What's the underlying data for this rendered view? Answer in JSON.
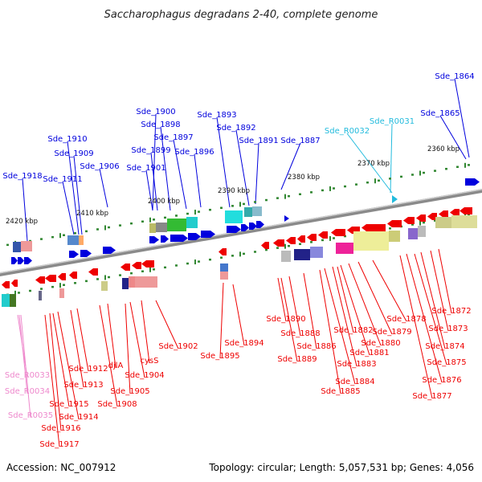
{
  "title": "Saccharophagus degradans 2-40, complete genome",
  "footer": {
    "accession": "Accession: NC_007912",
    "summary": "Topology: circular; Length: 5,057,531 bp; Genes: 4,056"
  },
  "colors": {
    "forward_gene": "#0000dd",
    "reverse_gene": "#ee0000",
    "rna_top": "#22bbdd",
    "rna_bottom": "#ee88cc",
    "backbone": "#808080",
    "tick": "#338833"
  },
  "scale_labels": [
    "2420 kbp",
    "2410 kbp",
    "2400 kbp",
    "2390 kbp",
    "2380 kbp",
    "2370 kbp",
    "2360 kbp"
  ],
  "top_genes": [
    "Sde_1918",
    "Sde_1911",
    "Sde_1910",
    "Sde_1909",
    "Sde_1906",
    "Sde_1901",
    "Sde_1900",
    "Sde_1899",
    "Sde_1898",
    "Sde_1897",
    "Sde_1896",
    "Sde_1893",
    "Sde_1892",
    "Sde_1891",
    "Sde_1887",
    "Sde_1865",
    "Sde_1864"
  ],
  "top_rna": [
    "Sde_R0032",
    "Sde_R0031"
  ],
  "bottom_genes": [
    "Sde_1917",
    "Sde_1916",
    "Sde_1915",
    "Sde_1914",
    "Sde_1913",
    "Sde_1912",
    "Sde_1908",
    "djlA",
    "Sde_1905",
    "Sde_1904",
    "cysS",
    "Sde_1902",
    "Sde_1895",
    "Sde_1894",
    "Sde_1890",
    "Sde_1889",
    "Sde_1888",
    "Sde_1886",
    "Sde_1885",
    "Sde_1884",
    "Sde_1883",
    "Sde_1882",
    "Sde_1881",
    "Sde_1880",
    "Sde_1879",
    "Sde_1878",
    "Sde_1877",
    "Sde_1876",
    "Sde_1875",
    "Sde_1874",
    "Sde_1873",
    "Sde_1872"
  ],
  "bottom_rna": [
    "Sde_R0033",
    "Sde_R0034",
    "Sde_R0035"
  ]
}
